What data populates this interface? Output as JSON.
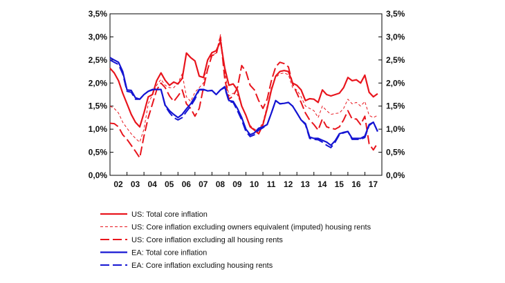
{
  "chart_data": {
    "type": "line",
    "title": "",
    "xlabel": "",
    "ylabel": "",
    "x_start": 2002.0,
    "x_step": 0.25,
    "xlim": [
      2002.0,
      2018.0
    ],
    "ylim": [
      0,
      3.5
    ],
    "grid": false,
    "legend_position": "bottom",
    "x_ticks": [
      {
        "value": 2002.0,
        "label": "02"
      },
      {
        "value": 2003.0,
        "label": "03"
      },
      {
        "value": 2004.0,
        "label": "04"
      },
      {
        "value": 2005.0,
        "label": "05"
      },
      {
        "value": 2006.0,
        "label": "06"
      },
      {
        "value": 2007.0,
        "label": "07"
      },
      {
        "value": 2008.0,
        "label": "08"
      },
      {
        "value": 2009.0,
        "label": "09"
      },
      {
        "value": 2010.0,
        "label": "10"
      },
      {
        "value": 2011.0,
        "label": "11"
      },
      {
        "value": 2012.0,
        "label": "12"
      },
      {
        "value": 2013.0,
        "label": "13"
      },
      {
        "value": 2014.0,
        "label": "14"
      },
      {
        "value": 2015.0,
        "label": "15"
      },
      {
        "value": 2016.0,
        "label": "16"
      },
      {
        "value": 2017.0,
        "label": "17"
      }
    ],
    "y_ticks": [
      {
        "value": 0.0,
        "label": "0,0%"
      },
      {
        "value": 0.5,
        "label": "0,5%"
      },
      {
        "value": 1.0,
        "label": "1,0%"
      },
      {
        "value": 1.5,
        "label": "1,5%"
      },
      {
        "value": 2.0,
        "label": "2,0%"
      },
      {
        "value": 2.5,
        "label": "2,5%"
      },
      {
        "value": 3.0,
        "label": "3,0%"
      },
      {
        "value": 3.5,
        "label": "3,5%"
      }
    ],
    "series": [
      {
        "name": "US: Total core inflation",
        "color": "#e8141c",
        "style": "solid",
        "values": [
          2.32,
          2.22,
          2.05,
          1.78,
          1.55,
          1.32,
          1.15,
          1.05,
          1.35,
          1.7,
          1.75,
          2.05,
          2.22,
          2.06,
          1.95,
          2.02,
          1.98,
          2.1,
          2.65,
          2.55,
          2.48,
          2.15,
          2.12,
          2.5,
          2.66,
          2.7,
          2.9,
          2.33,
          1.95,
          1.98,
          1.85,
          1.5,
          1.3,
          1.05,
          0.98,
          0.9,
          1.1,
          1.45,
          1.85,
          2.15,
          2.25,
          2.27,
          2.25,
          2.0,
          1.95,
          1.85,
          1.62,
          1.66,
          1.65,
          1.58,
          1.85,
          1.75,
          1.72,
          1.75,
          1.78,
          1.9,
          2.12,
          2.05,
          2.07,
          2.0,
          2.17,
          1.8,
          1.7,
          1.77
        ]
      },
      {
        "name": "US:  Core inflation excluding owners equivalent (imputed) housing rents",
        "color": "#e8141c",
        "style": "thin-dashed",
        "values": [
          1.5,
          1.45,
          1.35,
          1.15,
          1.02,
          0.9,
          0.8,
          0.72,
          1.0,
          1.55,
          1.75,
          1.95,
          2.08,
          1.95,
          1.9,
          1.9,
          2.0,
          2.2,
          1.7,
          1.6,
          1.8,
          1.9,
          2.0,
          2.5,
          2.6,
          2.65,
          3.05,
          2.25,
          1.72,
          1.78,
          1.75,
          1.5,
          1.3,
          1.08,
          1.0,
          0.98,
          1.15,
          1.5,
          1.9,
          2.12,
          2.2,
          2.22,
          2.18,
          1.9,
          1.85,
          1.7,
          1.5,
          1.45,
          1.4,
          1.25,
          1.5,
          1.4,
          1.32,
          1.34,
          1.35,
          1.45,
          1.65,
          1.55,
          1.58,
          1.5,
          1.6,
          1.3,
          1.25,
          1.3
        ]
      },
      {
        "name": "US:  Core inflation excluding all housing rents",
        "color": "#e8141c",
        "style": "long-dashed",
        "values": [
          1.13,
          1.12,
          1.05,
          0.88,
          0.78,
          0.65,
          0.52,
          0.38,
          0.85,
          1.25,
          1.55,
          1.85,
          2.0,
          1.9,
          1.72,
          1.6,
          1.72,
          1.85,
          1.55,
          1.45,
          1.28,
          1.45,
          1.9,
          2.3,
          2.6,
          2.62,
          3.0,
          2.1,
          1.65,
          1.72,
          1.9,
          2.38,
          2.25,
          1.95,
          1.85,
          1.62,
          1.45,
          1.65,
          2.05,
          2.35,
          2.45,
          2.42,
          2.35,
          1.98,
          1.78,
          1.58,
          1.35,
          1.2,
          1.1,
          0.98,
          1.22,
          1.05,
          1.02,
          1.0,
          1.05,
          1.2,
          1.4,
          1.22,
          1.22,
          1.1,
          1.28,
          0.68,
          0.55,
          0.7
        ]
      },
      {
        "name": "EA: Total core inflation",
        "color": "#1414d2",
        "style": "solid",
        "values": [
          2.55,
          2.5,
          2.45,
          2.25,
          1.85,
          1.84,
          1.68,
          1.65,
          1.75,
          1.82,
          1.86,
          1.86,
          1.86,
          1.52,
          1.4,
          1.32,
          1.25,
          1.32,
          1.44,
          1.55,
          1.7,
          1.86,
          1.86,
          1.83,
          1.84,
          1.75,
          1.85,
          1.92,
          1.62,
          1.6,
          1.45,
          1.25,
          1.0,
          0.88,
          0.92,
          1.02,
          1.05,
          1.1,
          1.35,
          1.62,
          1.55,
          1.56,
          1.58,
          1.5,
          1.35,
          1.2,
          1.12,
          0.83,
          0.8,
          0.8,
          0.76,
          0.72,
          0.65,
          0.75,
          0.9,
          0.93,
          0.95,
          0.8,
          0.8,
          0.8,
          0.85,
          1.1,
          1.15,
          0.95
        ]
      },
      {
        "name": "EA: Core inflation excluding housing rents",
        "color": "#1414d2",
        "style": "long-dashed",
        "values": [
          2.5,
          2.45,
          2.4,
          2.2,
          1.82,
          1.8,
          1.65,
          1.65,
          1.75,
          1.82,
          1.85,
          1.86,
          1.86,
          1.5,
          1.36,
          1.25,
          1.2,
          1.25,
          1.38,
          1.5,
          1.65,
          1.85,
          1.85,
          1.83,
          1.84,
          1.75,
          1.85,
          1.9,
          1.6,
          1.58,
          1.4,
          1.2,
          0.95,
          0.84,
          0.88,
          0.98,
          1.03,
          1.1,
          1.35,
          1.62,
          1.55,
          1.56,
          1.58,
          1.5,
          1.35,
          1.2,
          1.1,
          0.8,
          0.78,
          0.77,
          0.72,
          0.65,
          0.6,
          0.72,
          0.88,
          0.92,
          0.95,
          0.78,
          0.78,
          0.78,
          0.82,
          1.08,
          1.15,
          0.95
        ]
      }
    ]
  }
}
